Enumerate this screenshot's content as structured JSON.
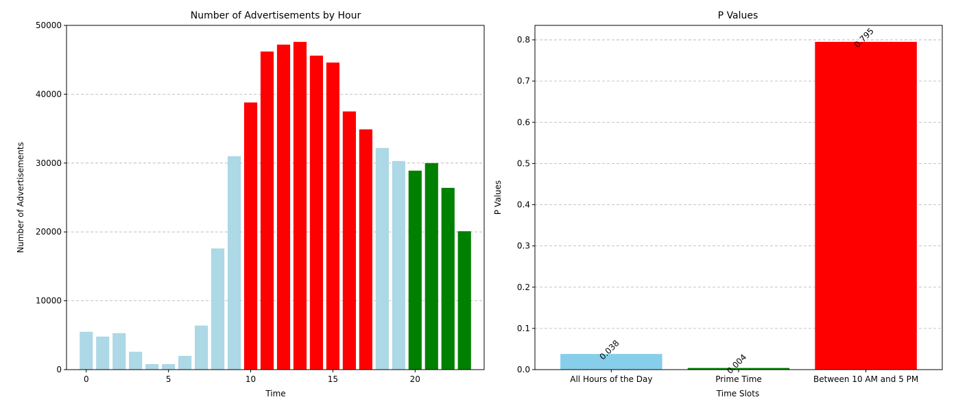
{
  "chart_data": [
    {
      "type": "bar",
      "title": "Number of Advertisements by Hour",
      "xlabel": "Time",
      "ylabel": "Number of Advertisements",
      "x": [
        0,
        1,
        2,
        3,
        4,
        5,
        6,
        7,
        8,
        9,
        10,
        11,
        12,
        13,
        14,
        15,
        16,
        17,
        18,
        19,
        20,
        21,
        22,
        23
      ],
      "values": [
        5500,
        4800,
        5300,
        2600,
        800,
        800,
        2000,
        6400,
        17600,
        31000,
        38800,
        46200,
        47200,
        47600,
        45600,
        44600,
        37500,
        34900,
        32200,
        30300,
        28900,
        30000,
        26400,
        20100
      ],
      "colors": [
        "#add8e6",
        "#add8e6",
        "#add8e6",
        "#add8e6",
        "#add8e6",
        "#add8e6",
        "#add8e6",
        "#add8e6",
        "#add8e6",
        "#add8e6",
        "#ff0000",
        "#ff0000",
        "#ff0000",
        "#ff0000",
        "#ff0000",
        "#ff0000",
        "#ff0000",
        "#ff0000",
        "#add8e6",
        "#add8e6",
        "#008000",
        "#008000",
        "#008000",
        "#008000"
      ],
      "xlim": [
        -1.2,
        24.2
      ],
      "ylim": [
        0,
        50000
      ],
      "xticks": [
        0,
        5,
        10,
        15,
        20
      ],
      "yticks": [
        0,
        10000,
        20000,
        30000,
        40000,
        50000
      ],
      "grid": "y-dashed"
    },
    {
      "type": "bar",
      "title": "P Values",
      "xlabel": "Time Slots",
      "ylabel": "P Values",
      "categories": [
        "All Hours of the Day",
        "Prime Time",
        "Between 10 AM and 5 PM"
      ],
      "values": [
        0.038,
        0.004,
        0.795
      ],
      "labels": [
        "0.038",
        "0.004",
        "0.795"
      ],
      "colors": [
        "#87ceeb",
        "#008000",
        "#ff0000"
      ],
      "ylim": [
        0,
        0.835
      ],
      "yticks": [
        0.0,
        0.1,
        0.2,
        0.3,
        0.4,
        0.5,
        0.6,
        0.7,
        0.8
      ],
      "ytick_labels": [
        "0.0",
        "0.1",
        "0.2",
        "0.3",
        "0.4",
        "0.5",
        "0.6",
        "0.7",
        "0.8"
      ],
      "grid": "y-dashed"
    }
  ]
}
